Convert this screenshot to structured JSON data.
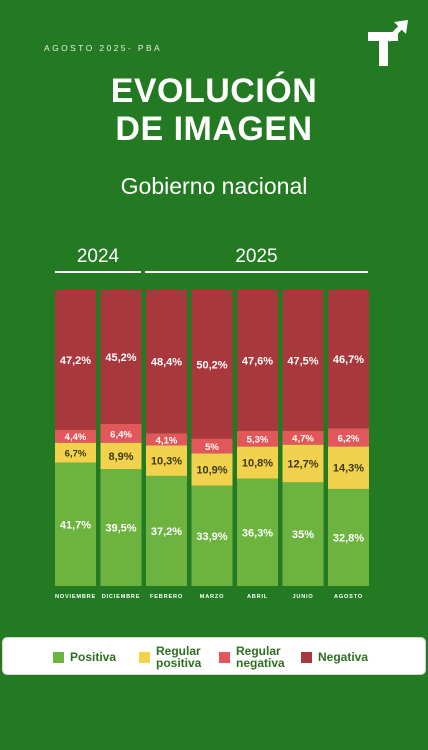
{
  "header": {
    "date_label": "AGOSTO 2025- PBA",
    "title_line1": "EVOLUCIÓN",
    "title_line2": "DE IMAGEN",
    "subtitle": "Gobierno nacional",
    "logo_icon": "t-arrow-logo-icon"
  },
  "years": [
    {
      "label": "2024"
    },
    {
      "label": "2025"
    }
  ],
  "colors": {
    "background": "#237a22",
    "positiva": "#6db33f",
    "regular_positiva": "#f2d24c",
    "regular_negativa": "#e2585a",
    "negativa": "#a8383c"
  },
  "chart_data": {
    "type": "bar",
    "stacked": true,
    "normalized": true,
    "categories": [
      "NOVIEMBRE",
      "DICIEMBRE",
      "FEBRERO",
      "MARZO",
      "ABRIL",
      "JUNIO",
      "AGOSTO"
    ],
    "series": [
      {
        "name": "Positiva",
        "color": "#6db33f",
        "values": [
          41.7,
          39.5,
          37.2,
          33.9,
          36.3,
          35,
          32.8
        ],
        "labels": [
          "41,7%",
          "39,5%",
          "37,2%",
          "33,9%",
          "36,3%",
          "35%",
          "32,8%"
        ]
      },
      {
        "name": "Regular positiva",
        "color": "#f2d24c",
        "values": [
          6.7,
          8.9,
          10.3,
          10.9,
          10.8,
          12.7,
          14.3
        ],
        "labels": [
          "6,7%",
          "8,9%",
          "10,3%",
          "10,9%",
          "10,8%",
          "12,7%",
          "14,3%"
        ]
      },
      {
        "name": "Regular negativa",
        "color": "#e2585a",
        "values": [
          4.4,
          6.4,
          4.1,
          5,
          5.3,
          4.7,
          6.2
        ],
        "labels": [
          "4,4%",
          "6,4%",
          "4,1%",
          "5%",
          "5,3%",
          "4,7%",
          "6,2%"
        ]
      },
      {
        "name": "Negativa",
        "color": "#a8383c",
        "values": [
          47.2,
          45.2,
          48.4,
          50.2,
          47.6,
          47.5,
          46.7
        ],
        "labels": [
          "47,2%",
          "45,2%",
          "48,4%",
          "50,2%",
          "47,6%",
          "47,5%",
          "46,7%"
        ]
      }
    ],
    "ylim": [
      0,
      100
    ],
    "grid": false,
    "legend_position": "bottom"
  },
  "legend": [
    {
      "line1": "Positiva",
      "line2": "",
      "color": "#6db33f"
    },
    {
      "line1": "Regular",
      "line2": "positiva",
      "color": "#f2d24c"
    },
    {
      "line1": "Regular",
      "line2": "negativa",
      "color": "#e2585a"
    },
    {
      "line1": "Negativa",
      "line2": "",
      "color": "#a8383c"
    }
  ]
}
